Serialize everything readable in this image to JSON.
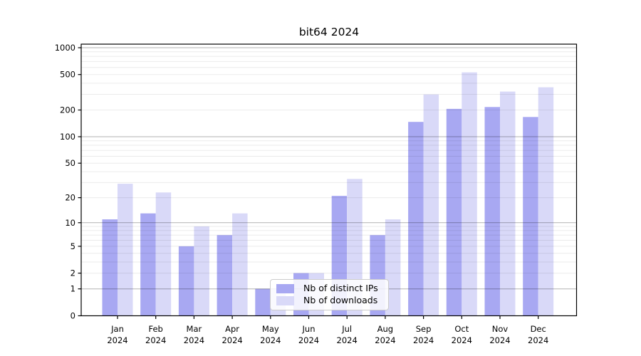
{
  "chart_data": {
    "type": "bar",
    "title": "bit64 2024",
    "x_axis": {
      "months": [
        "Jan",
        "Feb",
        "Mar",
        "Apr",
        "May",
        "Jun",
        "Jul",
        "Aug",
        "Sep",
        "Oct",
        "Nov",
        "Dec"
      ],
      "year": "2024"
    },
    "y_axis": {
      "ticks": [
        0,
        1,
        2,
        5,
        10,
        20,
        50,
        100,
        200,
        500,
        1000
      ],
      "scale": "symlog",
      "range": [
        0,
        1000
      ],
      "grid": "horizontal major+minor"
    },
    "series": [
      {
        "name": "Nb of distinct IPs",
        "color": "#a8a8f2",
        "values": [
          11,
          13,
          5,
          7,
          1,
          2,
          21,
          7,
          147,
          206,
          216,
          167
        ]
      },
      {
        "name": "Nb of downloads",
        "color": "#d9d9f8",
        "values": [
          29,
          23,
          9,
          13,
          1,
          2,
          33,
          11,
          299,
          530,
          322,
          360
        ]
      }
    ],
    "legend": {
      "position": "lower center",
      "entries": [
        "Nb of distinct IPs",
        "Nb of downloads"
      ]
    }
  }
}
